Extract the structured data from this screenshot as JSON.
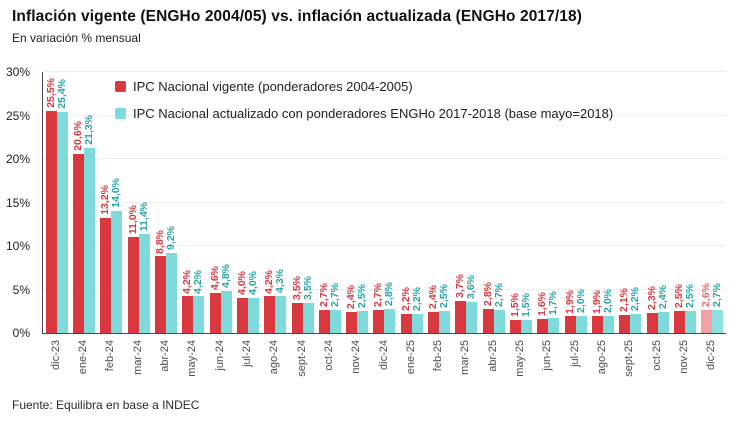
{
  "header": {
    "title": "Inflación vigente (ENGHo 2004/05) vs. inflación actualizada (ENGHo 2017/18)",
    "subtitle": "En variación % mensual"
  },
  "footer": {
    "source": "Fuente: Equilibra en base a INDEC"
  },
  "colors": {
    "series1_bar": "#d9383f",
    "series1_label": "#d9383f",
    "series1_last_bar": "#f0a3a7",
    "series1_last_label": "#e2676e",
    "series2_bar": "#7edadb",
    "series2_label": "#27a4a7",
    "series2_last_bar": "#8fe0e0",
    "series2_last_label": "#27a4a7",
    "axis_line": "#4a4460",
    "gridline": "#efefef"
  },
  "chart_data": {
    "type": "bar",
    "title": "Inflación vigente (ENGHo 2004/05) vs. inflación actualizada (ENGHo 2017/18)",
    "subtitle": "En variación % mensual",
    "xlabel": "",
    "ylabel": "",
    "ylim": [
      0,
      30
    ],
    "grid": true,
    "legend_position": "top-left-inside",
    "y_ticks": [
      0,
      5,
      10,
      15,
      20,
      25,
      30
    ],
    "y_tick_labels": [
      "0%",
      "5%",
      "10%",
      "15%",
      "20%",
      "25%",
      "30%"
    ],
    "categories": [
      "dic-23",
      "ene-24",
      "feb-24",
      "mar-24",
      "abr-24",
      "may-24",
      "jun-24",
      "jul-24",
      "ago-24",
      "sept-24",
      "oct-24",
      "nov-24",
      "dic-24",
      "ene-25",
      "feb-25",
      "mar-25",
      "abr-25",
      "may-25",
      "jun-25",
      "jul-25",
      "ago-25",
      "sept-25",
      "oct-25",
      "nov-25",
      "dic-25"
    ],
    "series": [
      {
        "name": "IPC Nacional vigente (ponderadores 2004-2005)",
        "values": [
          25.5,
          20.6,
          13.2,
          11.0,
          8.8,
          4.2,
          4.6,
          4.0,
          4.2,
          3.5,
          2.7,
          2.4,
          2.7,
          2.2,
          2.4,
          3.7,
          2.8,
          1.5,
          1.6,
          1.9,
          1.9,
          2.1,
          2.3,
          2.5,
          2.6
        ],
        "labels": [
          "25,5%",
          "20,6%",
          "13,2%",
          "11,0%",
          "8,8%",
          "4,2%",
          "4,6%",
          "4,0%",
          "4,2%",
          "3,5%",
          "2,7%",
          "2,4%",
          "2,7%",
          "2,2%",
          "2,4%",
          "3,7%",
          "2,8%",
          "1,5%",
          "1,6%",
          "1,9%",
          "1,9%",
          "2,1%",
          "2,3%",
          "2,5%",
          "2,6%"
        ]
      },
      {
        "name": "IPC Nacional actualizado con ponderadores ENGHo 2017-2018 (base mayo=2018)",
        "values": [
          25.4,
          21.3,
          14.0,
          11.4,
          9.2,
          4.2,
          4.8,
          4.0,
          4.3,
          3.5,
          2.7,
          2.5,
          2.8,
          2.2,
          2.5,
          3.6,
          2.7,
          1.5,
          1.7,
          2.0,
          2.0,
          2.2,
          2.4,
          2.5,
          2.7
        ],
        "labels": [
          "25,4%",
          "21,3%",
          "14,0%",
          "11,4%",
          "9,2%",
          "4,2%",
          "4,8%",
          "4,0%",
          "4,3%",
          "3,5%",
          "2,7%",
          "2,5%",
          "2,8%",
          "2,2%",
          "2,5%",
          "3,6%",
          "2,7%",
          "1,5%",
          "1,7%",
          "2,0%",
          "2,0%",
          "2,2%",
          "2,4%",
          "2,5%",
          "2,7%"
        ]
      }
    ],
    "note": "last category (dic-25) drawn in lighter shades"
  },
  "legend": {
    "items": [
      {
        "label": "IPC Nacional vigente (ponderadores 2004-2005)"
      },
      {
        "label": "IPC Nacional actualizado con ponderadores ENGHo 2017-2018 (base mayo=2018)"
      }
    ]
  }
}
